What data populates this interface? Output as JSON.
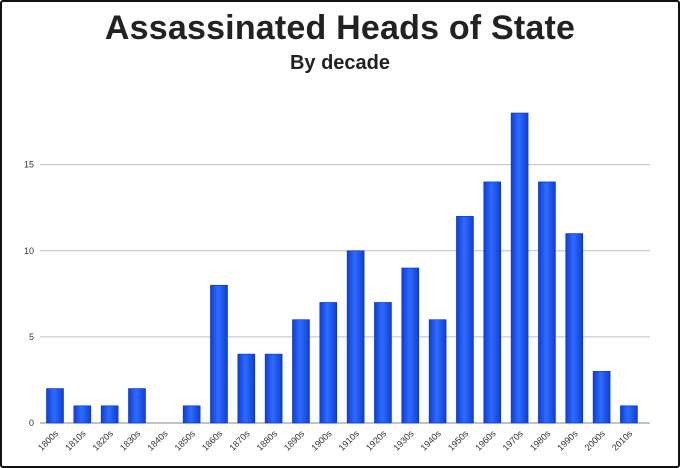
{
  "title": "Assassinated Heads of State",
  "subtitle": "By decade",
  "chart_data": {
    "type": "bar",
    "title": "Assassinated Heads of State",
    "subtitle": "By decade",
    "categories": [
      "1800s",
      "1810s",
      "1820s",
      "1830s",
      "1840s",
      "1850s",
      "1860s",
      "1870s",
      "1880s",
      "1890s",
      "1900s",
      "1910s",
      "1920s",
      "1930s",
      "1940s",
      "1950s",
      "1960s",
      "1970s",
      "1980s",
      "1990s",
      "2000s",
      "2010s"
    ],
    "values": [
      2,
      1,
      1,
      2,
      0,
      1,
      8,
      4,
      4,
      6,
      7,
      10,
      7,
      9,
      6,
      12,
      14,
      18,
      14,
      11,
      3,
      1
    ],
    "ylim": [
      0,
      18
    ],
    "yticks": [
      0,
      5,
      10,
      15
    ],
    "xlabel": "",
    "ylabel": "",
    "grid": true,
    "bar_color": "#1a56f0"
  }
}
